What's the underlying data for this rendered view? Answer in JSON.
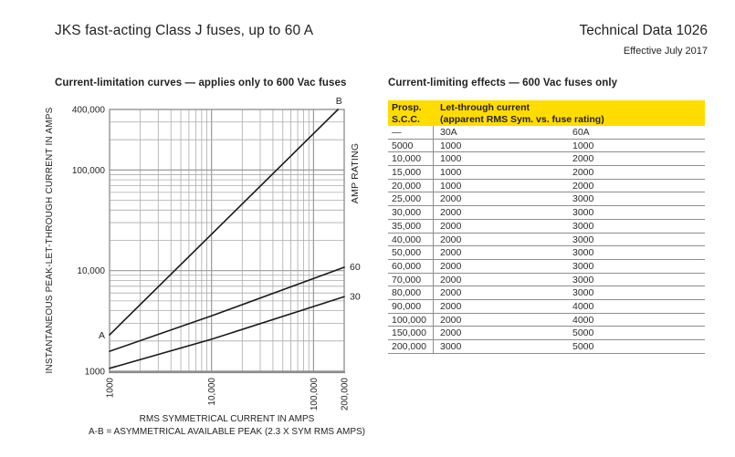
{
  "header": {
    "title": "JKS fast-acting Class J fuses, up to 60 A",
    "doc_number": "Technical Data 1026",
    "effective": "Effective July 2017"
  },
  "chart": {
    "title": "Current-limitation curves — applies only to 600 Vac fuses",
    "y_axis_title": "INSTANTANEOUS PEAK-LET-THROUGH CURRENT IN AMPS",
    "right_axis_title": "AMP RATING",
    "x_caption": "RMS SYMMETRICAL CURRENT IN AMPS",
    "x_caption2": "A-B = ASYMMETRICAL AVAILABLE PEAK (2.3 X SYM RMS AMPS)"
  },
  "chart_data": {
    "type": "line",
    "x_scale": "log",
    "y_scale": "log",
    "xlim": [
      1000,
      200000
    ],
    "ylim": [
      1000,
      400000
    ],
    "grid": true,
    "xlabel": "RMS SYMMETRICAL CURRENT IN AMPS",
    "ylabel": "INSTANTANEOUS PEAK-LET-THROUGH CURRENT IN AMPS",
    "x_ticks": [
      {
        "value": 1000,
        "label": "1000"
      },
      {
        "value": 10000,
        "label": "10,000"
      },
      {
        "value": 100000,
        "label": "100,000"
      },
      {
        "value": 200000,
        "label": "200,000"
      }
    ],
    "y_ticks": [
      {
        "value": 1000,
        "label": "1000"
      },
      {
        "value": 10000,
        "label": "10,000"
      },
      {
        "value": 100000,
        "label": "100,000"
      },
      {
        "value": 400000,
        "label": "400,000"
      }
    ],
    "series": [
      {
        "name": "asymmetrical-available-peak-A-B",
        "label_start": "A",
        "label_end": "B",
        "label_end_pos": "above",
        "points": [
          [
            1000,
            2300
          ],
          [
            173900,
            400000
          ]
        ]
      },
      {
        "name": "60A-fuse-peak-let-through",
        "label_end": "60",
        "label_end_pos": "right",
        "points": [
          [
            1000,
            1580
          ],
          [
            10000,
            3550
          ],
          [
            200000,
            10800
          ]
        ]
      },
      {
        "name": "30A-fuse-peak-let-through",
        "label_end": "30",
        "label_end_pos": "right",
        "points": [
          [
            1000,
            1070
          ],
          [
            10000,
            2080
          ],
          [
            200000,
            5500
          ]
        ]
      }
    ]
  },
  "table": {
    "title": "Current-limiting effects — 600 Vac fuses only",
    "header": {
      "col1_line1": "Prosp.",
      "col1_line2": "S.C.C.",
      "col2_line1": "Let-through current",
      "col2_line2": "(apparent RMS Sym. vs. fuse rating)"
    },
    "subheader": [
      "—",
      "30A",
      "60A"
    ],
    "rows": [
      [
        "5000",
        "1000",
        "1000"
      ],
      [
        "10,000",
        "1000",
        "2000"
      ],
      [
        "15,000",
        "1000",
        "2000"
      ],
      [
        "20,000",
        "1000",
        "2000"
      ],
      [
        "25,000",
        "2000",
        "3000"
      ],
      [
        "30,000",
        "2000",
        "3000"
      ],
      [
        "35,000",
        "2000",
        "3000"
      ],
      [
        "40,000",
        "2000",
        "3000"
      ],
      [
        "50,000",
        "2000",
        "3000"
      ],
      [
        "60,000",
        "2000",
        "3000"
      ],
      [
        "70,000",
        "2000",
        "3000"
      ],
      [
        "80,000",
        "2000",
        "3000"
      ],
      [
        "90,000",
        "2000",
        "4000"
      ],
      [
        "100,000",
        "2000",
        "4000"
      ],
      [
        "150,000",
        "2000",
        "5000"
      ],
      [
        "200,000",
        "3000",
        "5000"
      ]
    ]
  },
  "colors": {
    "header_yellow": "#FFDC00",
    "grid_minor": "#ABABAB",
    "grid_major": "#9A9A9A",
    "axis_frame": "#8C8C8C",
    "curve": "#1A1A1A",
    "row_separator": "#8D8D8D",
    "text": "#231F20"
  }
}
